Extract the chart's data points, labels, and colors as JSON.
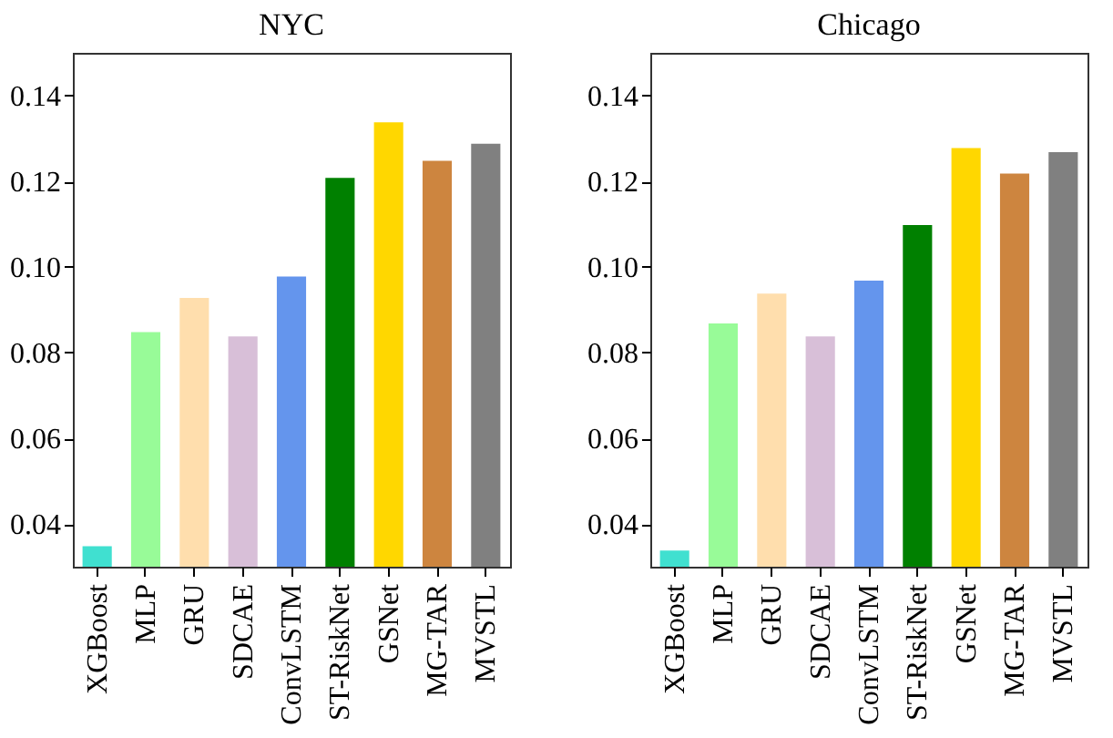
{
  "chart_data": [
    {
      "type": "bar",
      "title": "NYC",
      "categories": [
        "XGBoost",
        "MLP",
        "GRU",
        "SDCAE",
        "ConvLSTM",
        "ST-RiskNet",
        "GSNet",
        "MG-TAR",
        "MVSTL"
      ],
      "values": [
        0.035,
        0.085,
        0.093,
        0.084,
        0.098,
        0.121,
        0.134,
        0.125,
        0.129
      ],
      "colors": [
        "#40e0d0",
        "#98fb98",
        "#ffdead",
        "#d8bfd8",
        "#6495ed",
        "#008000",
        "#ffd700",
        "#cd853f",
        "#808080"
      ],
      "ylim": [
        0.03,
        0.15
      ],
      "yticks": [
        0.04,
        0.06,
        0.08,
        {
          "value": 0.1,
          "label": "0.10"
        },
        0.12,
        0.14
      ],
      "grid": false
    },
    {
      "type": "bar",
      "title": "Chicago",
      "categories": [
        "XGBoost",
        "MLP",
        "GRU",
        "SDCAE",
        "ConvLSTM",
        "ST-RiskNet",
        "GSNet",
        "MG-TAR",
        "MVSTL"
      ],
      "values": [
        0.034,
        0.087,
        0.094,
        0.084,
        0.097,
        0.11,
        0.128,
        0.122,
        0.127
      ],
      "colors": [
        "#40e0d0",
        "#98fb98",
        "#ffdead",
        "#d8bfd8",
        "#6495ed",
        "#008000",
        "#ffd700",
        "#cd853f",
        "#808080"
      ],
      "ylim": [
        0.03,
        0.15
      ],
      "yticks": [
        0.04,
        0.06,
        0.08,
        {
          "value": 0.1,
          "label": "0.10"
        },
        0.12,
        0.14
      ],
      "grid": false
    }
  ]
}
